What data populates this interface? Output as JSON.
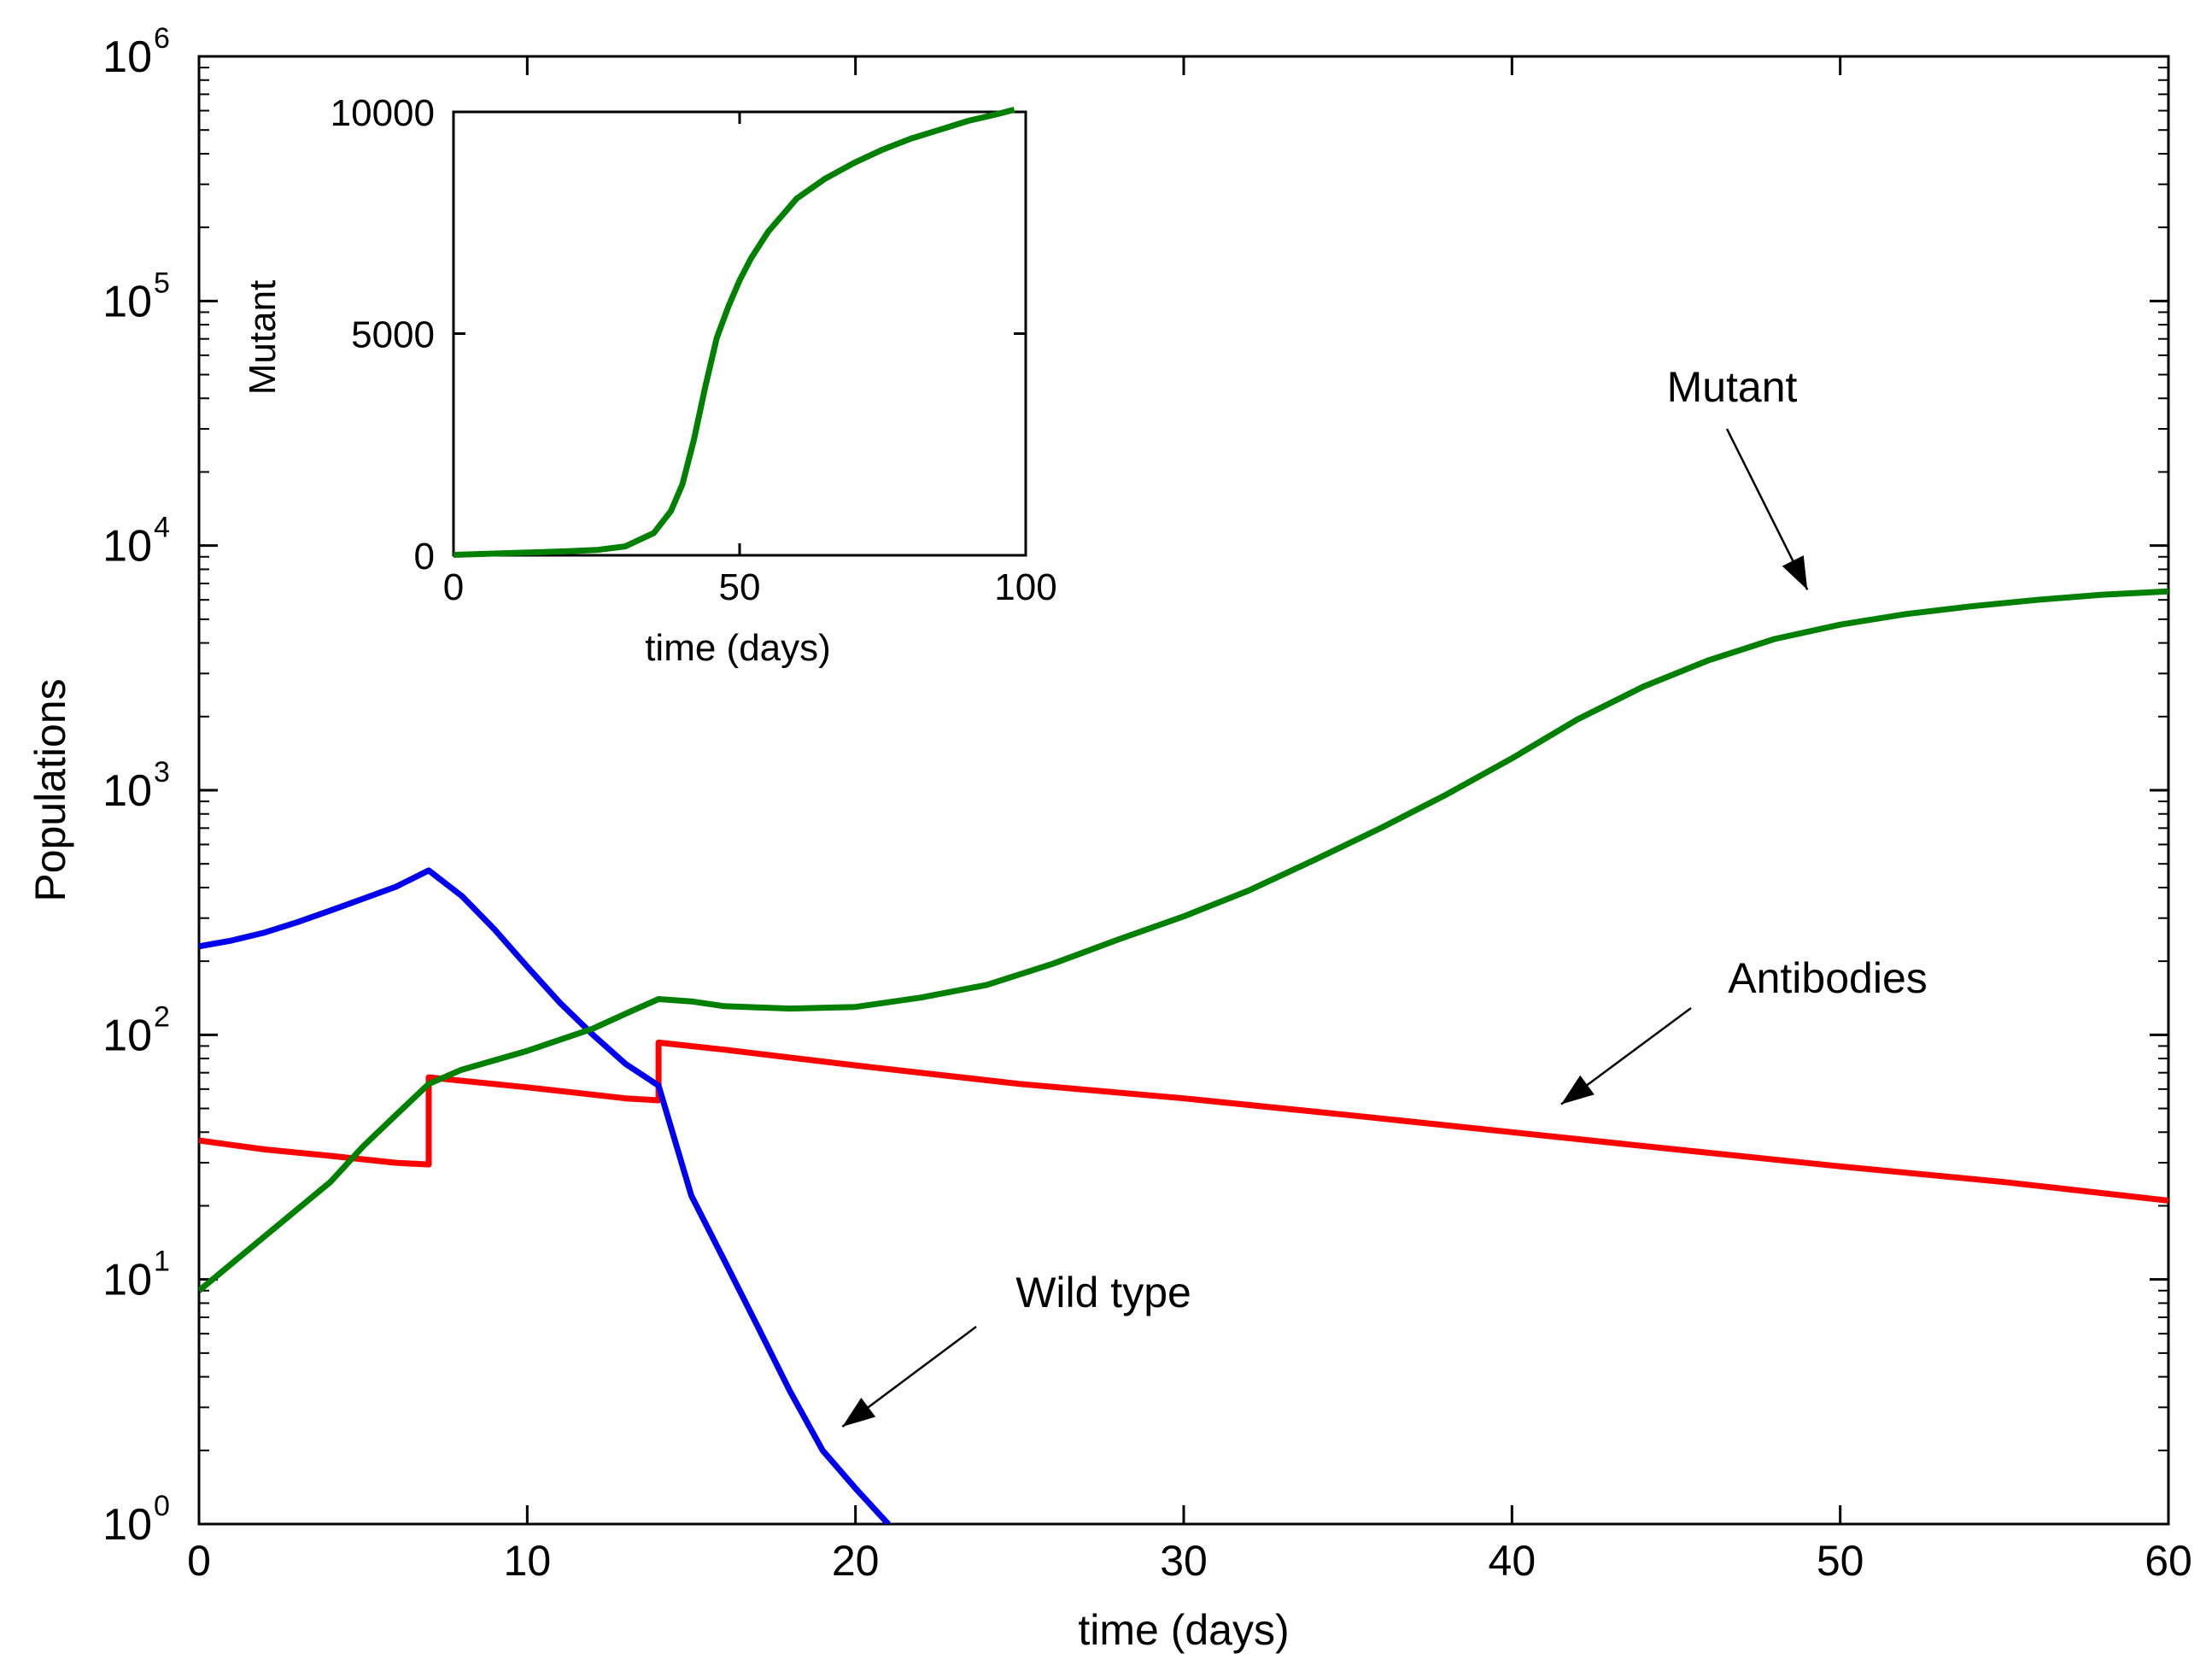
{
  "chart_data": [
    {
      "id": "main",
      "type": "line",
      "title": "",
      "xlabel": "time (days)",
      "ylabel": "Populations",
      "xlim": [
        0,
        60
      ],
      "ylim": [
        1,
        1000000
      ],
      "yscale": "log",
      "grid": false,
      "xticks": [
        0,
        10,
        20,
        30,
        40,
        50,
        60
      ],
      "xtick_labels": [
        "0",
        "10",
        "20",
        "30",
        "40",
        "50",
        "60"
      ],
      "yticks": [
        {
          "value": 1,
          "base": "10",
          "exp": "0"
        },
        {
          "value": 10,
          "base": "10",
          "exp": "1"
        },
        {
          "value": 100,
          "base": "10",
          "exp": "2"
        },
        {
          "value": 1000,
          "base": "10",
          "exp": "3"
        },
        {
          "value": 10000,
          "base": "10",
          "exp": "4"
        },
        {
          "value": 100000,
          "base": "10",
          "exp": "5"
        },
        {
          "value": 1000000,
          "base": "10",
          "exp": "6"
        }
      ],
      "series": [
        {
          "name": "Wild type",
          "color": "#0000ee",
          "x": [
            0,
            1,
            2,
            3,
            4,
            5,
            6,
            7,
            8,
            9,
            10,
            11,
            12,
            13,
            14,
            15,
            16,
            17,
            18,
            19,
            20,
            21
          ],
          "y": [
            230,
            243,
            262,
            289,
            322,
            360,
            403,
            470,
            370,
            270,
            190,
            135,
            100,
            76,
            62,
            22,
            12,
            6.5,
            3.5,
            2.0,
            1.4,
            1.0
          ]
        },
        {
          "name": "Mutant",
          "color": "#008000",
          "x": [
            0,
            2,
            4,
            5,
            6,
            7,
            8,
            10,
            12,
            13,
            14,
            15,
            16,
            18,
            20,
            22,
            24,
            26,
            28,
            30,
            32,
            34,
            36,
            38,
            40,
            42,
            44,
            46,
            48,
            50,
            52,
            54,
            56,
            58,
            60
          ],
          "y": [
            9,
            15,
            25,
            35,
            47,
            63,
            72,
            86,
            106,
            122,
            140,
            137,
            131,
            128,
            130,
            142,
            160,
            195,
            245,
            305,
            390,
            520,
            700,
            960,
            1350,
            1950,
            2650,
            3400,
            4150,
            4750,
            5250,
            5650,
            6000,
            6300,
            6500
          ]
        },
        {
          "name": "Antibodies",
          "color": "#ff0000",
          "x": [
            0,
            2,
            4,
            6,
            7,
            7,
            10,
            13,
            14,
            14,
            16,
            20,
            25,
            30,
            35,
            40,
            45,
            50,
            55,
            60
          ],
          "y": [
            37,
            34,
            32,
            30,
            29.5,
            67,
            61,
            55,
            54,
            93,
            87,
            75,
            63,
            55,
            47,
            40,
            34,
            29,
            25,
            21
          ]
        }
      ],
      "annotations": [
        {
          "text": "Mutant",
          "target_x": 49,
          "target_y": 6600
        },
        {
          "text": "Antibodies",
          "target_x": 41.5,
          "target_y": 52
        },
        {
          "text": "Wild type",
          "target_x": 19.6,
          "target_y": 2.5
        }
      ]
    },
    {
      "id": "inset",
      "type": "line",
      "title": "",
      "xlabel": "time (days)",
      "ylabel": "Mutant",
      "xlim": [
        0,
        100
      ],
      "ylim": [
        0,
        10000
      ],
      "yscale": "linear",
      "grid": false,
      "xticks": [
        0,
        50,
        100
      ],
      "xtick_labels": [
        "0",
        "50",
        "100"
      ],
      "yticks": [
        0,
        5000,
        10000
      ],
      "ytick_labels": [
        "0",
        "5000",
        "10000"
      ],
      "series": [
        {
          "name": "Mutant",
          "color": "#008000",
          "x": [
            0,
            10,
            20,
            25,
            30,
            35,
            38,
            40,
            42,
            44,
            46,
            48,
            50,
            52,
            55,
            58,
            60,
            65,
            70,
            75,
            80,
            85,
            90,
            95,
            98
          ],
          "y": [
            10,
            50,
            90,
            120,
            200,
            500,
            1000,
            1600,
            2600,
            3800,
            4900,
            5600,
            6200,
            6700,
            7300,
            7750,
            8050,
            8500,
            8850,
            9150,
            9400,
            9600,
            9800,
            9950,
            10050
          ]
        }
      ]
    }
  ]
}
